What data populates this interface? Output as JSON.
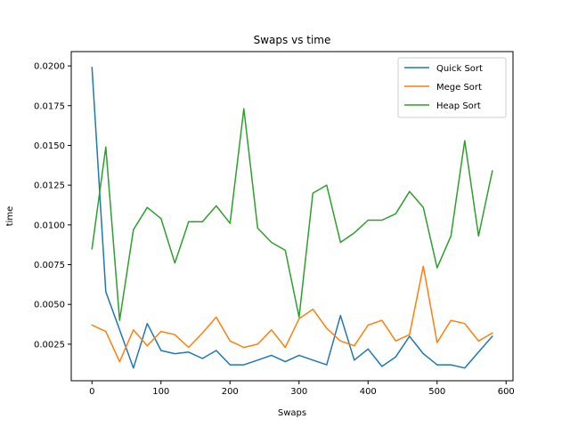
{
  "chart_data": {
    "type": "line",
    "title": "Swaps vs time",
    "xlabel": "Swaps",
    "ylabel": "time",
    "xlim": [
      -30,
      610
    ],
    "ylim": [
      0.0002,
      0.0209
    ],
    "grid": false,
    "legend_position": "upper-right",
    "x_ticks": [
      0,
      100,
      200,
      300,
      400,
      500,
      600
    ],
    "x_tick_labels": [
      "0",
      "100",
      "200",
      "300",
      "400",
      "500",
      "600"
    ],
    "y_ticks": [
      0.0025,
      0.005,
      0.0075,
      0.01,
      0.0125,
      0.015,
      0.0175,
      0.02
    ],
    "y_tick_labels": [
      "0.0025",
      "0.0050",
      "0.0075",
      "0.0100",
      "0.0125",
      "0.0150",
      "0.0175",
      "0.0200"
    ],
    "x": [
      0,
      20,
      40,
      60,
      80,
      100,
      120,
      140,
      160,
      180,
      200,
      220,
      240,
      260,
      280,
      300,
      320,
      340,
      360,
      380,
      400,
      420,
      440,
      460,
      480,
      500,
      520,
      540,
      560,
      580
    ],
    "series": [
      {
        "name": "Quick Sort",
        "color": "#1f77b4",
        "values": [
          0.0199,
          0.0058,
          0.0034,
          0.001,
          0.0038,
          0.0021,
          0.0019,
          0.002,
          0.0016,
          0.0021,
          0.0012,
          0.0012,
          0.0015,
          0.0018,
          0.0014,
          0.0018,
          0.0015,
          0.0012,
          0.0043,
          0.0015,
          0.0022,
          0.0011,
          0.0017,
          0.003,
          0.0019,
          0.0012,
          0.0012,
          0.001,
          0.002,
          0.003
        ]
      },
      {
        "name": "Mege Sort",
        "color": "#ff7f0e",
        "values": [
          0.0037,
          0.0033,
          0.0014,
          0.0034,
          0.0024,
          0.0033,
          0.0031,
          0.0023,
          0.0032,
          0.0042,
          0.0027,
          0.0023,
          0.0025,
          0.0034,
          0.0023,
          0.0041,
          0.0047,
          0.0035,
          0.0027,
          0.0024,
          0.0037,
          0.004,
          0.0027,
          0.0031,
          0.0074,
          0.0026,
          0.004,
          0.0038,
          0.0027,
          0.0032
        ]
      },
      {
        "name": "Heap Sort",
        "color": "#2ca02c",
        "values": [
          0.0085,
          0.0149,
          0.004,
          0.0097,
          0.0111,
          0.0104,
          0.0076,
          0.0102,
          0.0102,
          0.0112,
          0.0101,
          0.0173,
          0.0098,
          0.0089,
          0.0084,
          0.0042,
          0.012,
          0.0125,
          0.0089,
          0.0095,
          0.0103,
          0.0103,
          0.0107,
          0.0121,
          0.0111,
          0.0073,
          0.0093,
          0.0153,
          0.0093,
          0.0134
        ]
      }
    ]
  }
}
